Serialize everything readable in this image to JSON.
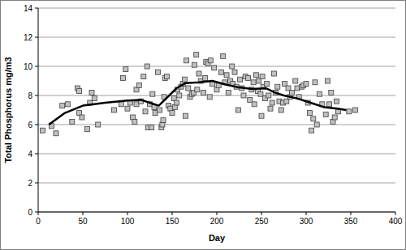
{
  "chart_data": {
    "type": "scatter",
    "x_label": "Day",
    "y_label": "Total Phosphorus mg/m3",
    "xlim": [
      0,
      400
    ],
    "xticks": [
      0,
      50,
      100,
      150,
      200,
      250,
      300,
      350,
      400
    ],
    "ylim": [
      0,
      14
    ],
    "yticks": [
      0,
      2,
      4,
      6,
      8,
      10,
      12,
      14
    ],
    "grid": true,
    "series": [
      {
        "type": "scatter",
        "marker": "square",
        "color": "#c0c0c0",
        "x": [
          5,
          15,
          20,
          27,
          33,
          38,
          44,
          46,
          46,
          49,
          55,
          58,
          60,
          63,
          67,
          85,
          93,
          95,
          98,
          100,
          103,
          106,
          108,
          110,
          110,
          113,
          115,
          118,
          120,
          122,
          123,
          125,
          127,
          128,
          130,
          131,
          134,
          136,
          138,
          139,
          140,
          141,
          142,
          144,
          146,
          148,
          150,
          152,
          153,
          155,
          156,
          158,
          160,
          162,
          164,
          165,
          166,
          168,
          170,
          172,
          174,
          175,
          177,
          178,
          180,
          182,
          185,
          187,
          188,
          190,
          192,
          193,
          195,
          197,
          200,
          202,
          205,
          207,
          209,
          211,
          213,
          215,
          217,
          218,
          220,
          222,
          224,
          226,
          228,
          230,
          232,
          235,
          237,
          239,
          241,
          242,
          244,
          246,
          247,
          249,
          250,
          251,
          252,
          254,
          256,
          258,
          260,
          262,
          264,
          266,
          268,
          270,
          272,
          274,
          276,
          278,
          280,
          282,
          284,
          288,
          290,
          292,
          295,
          297,
          300,
          302,
          304,
          306,
          308,
          310,
          312,
          315,
          318,
          322,
          324,
          326,
          328,
          330,
          332,
          334,
          336,
          348,
          355
        ],
        "values": [
          5.6,
          5.9,
          5.4,
          7.3,
          7.4,
          6.2,
          8.5,
          8.3,
          6.8,
          6.5,
          5.7,
          7.5,
          8.2,
          7.8,
          6.0,
          7.0,
          7.4,
          9.2,
          9.8,
          7.1,
          7.5,
          6.5,
          6.2,
          8.4,
          7.4,
          8.7,
          7.6,
          9.3,
          6.9,
          10.0,
          5.8,
          7.4,
          5.8,
          8.1,
          7.2,
          6.8,
          9.6,
          7.0,
          5.8,
          6.0,
          6.3,
          7.9,
          9.2,
          9.3,
          7.3,
          7.1,
          6.8,
          7.8,
          7.2,
          7.5,
          8.4,
          8.0,
          8.6,
          8.8,
          9.1,
          6.6,
          10.4,
          8.5,
          7.9,
          8.1,
          8.2,
          10.1,
          10.8,
          8.4,
          9.5,
          9.0,
          8.2,
          9.2,
          10.3,
          10.2,
          7.9,
          10.4,
          8.8,
          9.9,
          8.4,
          8.7,
          9.6,
          10.7,
          8.9,
          9.4,
          8.2,
          9.0,
          10.0,
          8.8,
          9.6,
          8.6,
          7.0,
          9.1,
          8.5,
          8.0,
          9.3,
          9.2,
          7.7,
          8.4,
          8.9,
          7.4,
          9.4,
          8.3,
          9.0,
          8.1,
          6.6,
          9.3,
          8.6,
          7.8,
          8.8,
          8.0,
          7.1,
          7.5,
          9.5,
          8.2,
          8.6,
          7.6,
          7.0,
          7.5,
          8.8,
          7.6,
          8.5,
          7.9,
          8.2,
          9.0,
          8.5,
          7.9,
          8.6,
          8.7,
          8.8,
          7.5,
          6.8,
          5.6,
          6.4,
          8.9,
          6.0,
          8.1,
          7.4,
          6.7,
          9.0,
          7.4,
          8.2,
          6.2,
          6.5,
          7.6,
          6.9,
          6.9,
          7.0
        ]
      },
      {
        "type": "line",
        "line_style": "solid",
        "color": "#000000",
        "x": [
          12,
          30,
          50,
          75,
          100,
          115,
          125,
          135,
          145,
          155,
          165,
          180,
          195,
          210,
          225,
          240,
          255,
          265,
          275,
          290,
          305,
          320,
          335,
          345
        ],
        "values": [
          6.0,
          6.8,
          7.3,
          7.5,
          7.65,
          7.7,
          7.5,
          7.3,
          7.9,
          8.5,
          8.85,
          8.9,
          9.0,
          8.75,
          8.55,
          8.45,
          8.5,
          8.2,
          8.0,
          7.8,
          7.5,
          7.2,
          7.1,
          7.0
        ]
      }
    ]
  }
}
